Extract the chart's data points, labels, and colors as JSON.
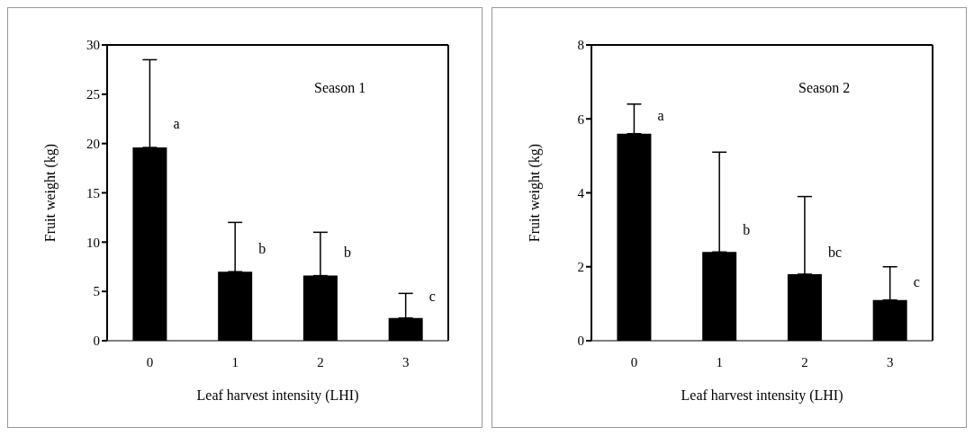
{
  "chart_data": [
    {
      "type": "bar",
      "categories": [
        "0",
        "1",
        "2",
        "3"
      ],
      "values": [
        19.6,
        7.0,
        6.6,
        2.3
      ],
      "color": "#000000",
      "errors": [
        [
          19.6,
          28.5
        ],
        [
          7.0,
          12.0
        ],
        [
          6.6,
          11.0
        ],
        [
          2.3,
          4.8
        ]
      ],
      "xlabel": "Leaf harvest intensity (LHI)",
      "ylabel": "Fruit weight (kg)",
      "ylim": [
        0,
        30
      ],
      "yticks": [
        0,
        5,
        10,
        15,
        20,
        25,
        30
      ],
      "grid": false,
      "legend": false,
      "annotations": [
        "Season 1",
        {
          "text": "a",
          "x": "0",
          "y": 22
        },
        {
          "text": "b",
          "x": "1",
          "y": 9.4
        },
        {
          "text": "b",
          "x": "2",
          "y": 9.0
        },
        {
          "text": "c",
          "x": "3",
          "y": 4.5
        }
      ]
    },
    {
      "type": "bar",
      "categories": [
        "0",
        "1",
        "2",
        "3"
      ],
      "values": [
        5.6,
        2.4,
        1.8,
        1.1
      ],
      "color": "#000000",
      "errors": [
        [
          5.6,
          6.4
        ],
        [
          2.4,
          5.1
        ],
        [
          1.8,
          3.9
        ],
        [
          1.1,
          2.0
        ]
      ],
      "xlabel": "Leaf harvest intensity (LHI)",
      "ylabel": "Fruit weight (kg)",
      "ylim": [
        0,
        8
      ],
      "yticks": [
        0,
        2,
        4,
        6,
        8
      ],
      "grid": false,
      "legend": false,
      "annotations": [
        "Season 2",
        {
          "text": "a",
          "x": "0",
          "y": 6.1
        },
        {
          "text": "b",
          "x": "1",
          "y": 3.0
        },
        {
          "text": "bc",
          "x": "2",
          "y": 2.4
        },
        {
          "text": "c",
          "x": "3",
          "y": 1.6
        }
      ]
    }
  ]
}
